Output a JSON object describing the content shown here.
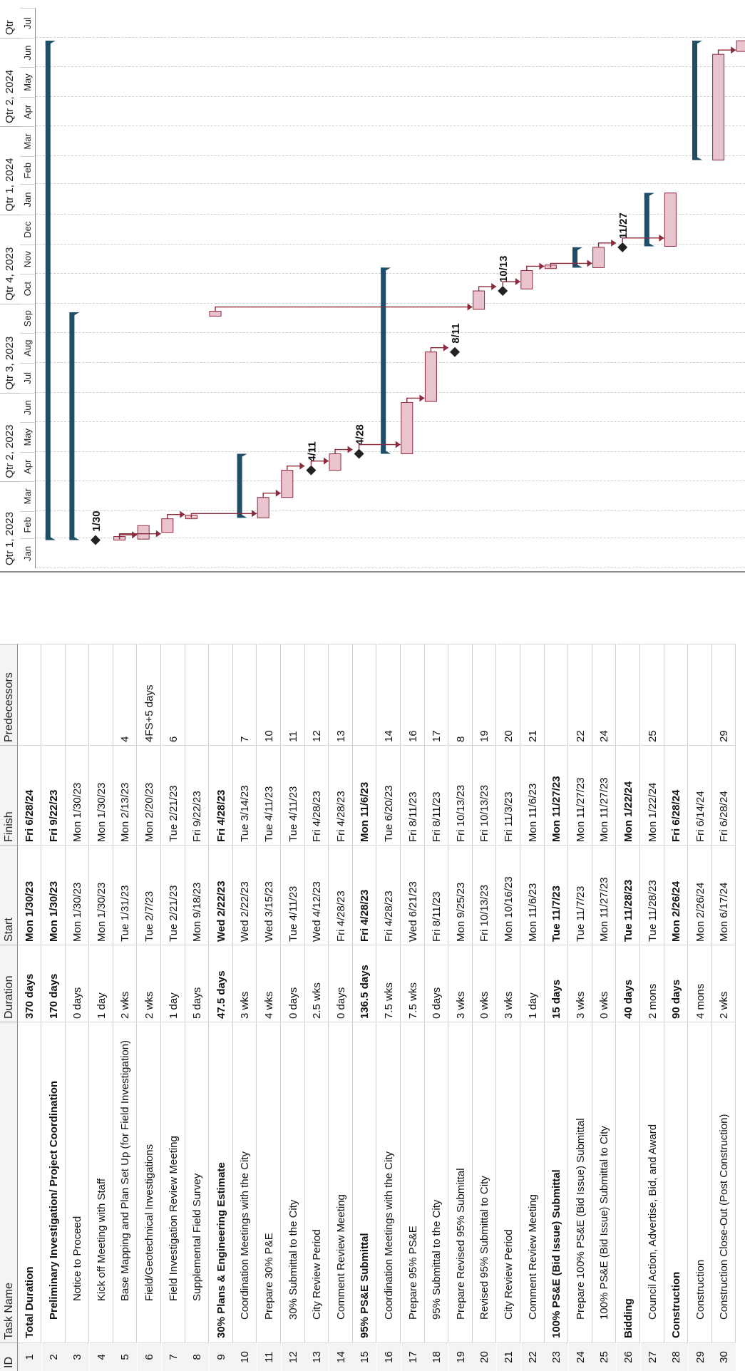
{
  "headers": {
    "id": "ID",
    "name": "Task Name",
    "duration": "Duration",
    "start": "Start",
    "finish": "Finish",
    "pred": "Predecessors"
  },
  "timescale": {
    "quarters": [
      "Qtr 1, 2023",
      "Qtr 2, 2023",
      "Qtr 3, 2023",
      "Qtr 4, 2023",
      "Qtr 1, 2024",
      "Qtr 2, 2024",
      "Qtr"
    ],
    "months": [
      "Jan",
      "Feb",
      "Mar",
      "Apr",
      "May",
      "Jun",
      "Jul",
      "Aug",
      "Sep",
      "Oct",
      "Nov",
      "Dec",
      "Jan",
      "Feb",
      "Mar",
      "Apr",
      "May",
      "Jun",
      "Jul"
    ]
  },
  "tasks": [
    {
      "id": "1",
      "name": "Total Duration",
      "duration": "370 days",
      "start": "Mon 1/30/23",
      "finish": "Fri 6/28/24",
      "pred": "",
      "summary": true,
      "indent": 0,
      "s": 29,
      "f": 544
    },
    {
      "id": "2",
      "name": "Preliminary Investigation/ Project Coordination",
      "duration": "170 days",
      "start": "Mon 1/30/23",
      "finish": "Fri 9/22/23",
      "pred": "",
      "summary": true,
      "indent": 1,
      "s": 29,
      "f": 264
    },
    {
      "id": "3",
      "name": "Notice to Proceed",
      "duration": "0 days",
      "start": "Mon 1/30/23",
      "finish": "Mon 1/30/23",
      "pred": "",
      "indent": 2,
      "milestone": true,
      "s": 29,
      "label": "1/30"
    },
    {
      "id": "4",
      "name": "Kick off Meeting with Staff",
      "duration": "1 day",
      "start": "Mon 1/30/23",
      "finish": "Mon 1/30/23",
      "pred": "",
      "indent": 2,
      "s": 29,
      "f": 30
    },
    {
      "id": "5",
      "name": "Base Mapping and Plan Set Up (for Field Investigation)",
      "duration": "2 wks",
      "start": "Tue 1/31/23",
      "finish": "Mon 2/13/23",
      "pred": "4",
      "indent": 2,
      "s": 30,
      "f": 44
    },
    {
      "id": "6",
      "name": "Field/Geotechnical Investigations",
      "duration": "2 wks",
      "start": "Tue 2/7/23",
      "finish": "Mon 2/20/23",
      "pred": "4FS+5 days",
      "indent": 2,
      "s": 37,
      "f": 51
    },
    {
      "id": "7",
      "name": "Field Investigation Review Meeting",
      "duration": "1 day",
      "start": "Tue 2/21/23",
      "finish": "Tue 2/21/23",
      "pred": "6",
      "indent": 2,
      "s": 51,
      "f": 52
    },
    {
      "id": "8",
      "name": "Supplemental Field Survey",
      "duration": "5 days",
      "start": "Mon 9/18/23",
      "finish": "Fri 9/22/23",
      "pred": "",
      "indent": 2,
      "s": 260,
      "f": 265
    },
    {
      "id": "9",
      "name": "30% Plans & Engineering Estimate",
      "duration": "47.5 days",
      "start": "Wed 2/22/23",
      "finish": "Fri 4/28/23",
      "pred": "",
      "summary": true,
      "indent": 0,
      "s": 52,
      "f": 118
    },
    {
      "id": "10",
      "name": "Coordination Meetings with the City",
      "duration": "3 wks",
      "start": "Wed 2/22/23",
      "finish": "Tue 3/14/23",
      "pred": "7",
      "indent": 1,
      "s": 52,
      "f": 73
    },
    {
      "id": "11",
      "name": "Prepare 30% P&E",
      "duration": "4 wks",
      "start": "Wed 3/15/23",
      "finish": "Tue 4/11/23",
      "pred": "10",
      "indent": 1,
      "s": 73,
      "f": 101
    },
    {
      "id": "12",
      "name": "30% Submittal to the City",
      "duration": "0 days",
      "start": "Tue 4/11/23",
      "finish": "Tue 4/11/23",
      "pred": "11",
      "indent": 1,
      "milestone": true,
      "s": 101,
      "label": "4/11"
    },
    {
      "id": "13",
      "name": "City Review Period",
      "duration": "2.5 wks",
      "start": "Wed 4/12/23",
      "finish": "Fri 4/28/23",
      "pred": "12",
      "indent": 1,
      "s": 101,
      "f": 118
    },
    {
      "id": "14",
      "name": "Comment Review Meeting",
      "duration": "0 days",
      "start": "Fri 4/28/23",
      "finish": "Fri 4/28/23",
      "pred": "13",
      "indent": 1,
      "milestone": true,
      "s": 118,
      "label": "4/28"
    },
    {
      "id": "15",
      "name": "95% PS&E Submittal",
      "duration": "136.5 days",
      "start": "Fri 4/28/23",
      "finish": "Mon 11/6/23",
      "pred": "",
      "summary": true,
      "indent": 0,
      "s": 118,
      "f": 310
    },
    {
      "id": "16",
      "name": "Coordination Meetings with the City",
      "duration": "7.5 wks",
      "start": "Fri 4/28/23",
      "finish": "Tue 6/20/23",
      "pred": "14",
      "indent": 1,
      "s": 118,
      "f": 171
    },
    {
      "id": "17",
      "name": "Prepare 95% PS&E",
      "duration": "7.5 wks",
      "start": "Wed 6/21/23",
      "finish": "Fri 8/11/23",
      "pred": "16",
      "indent": 1,
      "s": 172,
      "f": 223
    },
    {
      "id": "18",
      "name": "95% Submittal to the City",
      "duration": "0 days",
      "start": "Fri 8/11/23",
      "finish": "Fri 8/11/23",
      "pred": "17",
      "indent": 1,
      "milestone": true,
      "s": 223,
      "label": "8/11"
    },
    {
      "id": "19",
      "name": "Prepare Revised 95% Submittal",
      "duration": "3 wks",
      "start": "Mon 9/25/23",
      "finish": "Fri 10/13/23",
      "pred": "8",
      "indent": 1,
      "s": 267,
      "f": 286
    },
    {
      "id": "20",
      "name": "Revised 95% Submittal to City",
      "duration": "0 wks",
      "start": "Fri 10/13/23",
      "finish": "Fri 10/13/23",
      "pred": "19",
      "indent": 1,
      "milestone": true,
      "s": 286,
      "label": "10/13"
    },
    {
      "id": "21",
      "name": "City Review Period",
      "duration": "3 wks",
      "start": "Mon 10/16/23",
      "finish": "Fri 11/3/23",
      "pred": "20",
      "indent": 1,
      "s": 288,
      "f": 307
    },
    {
      "id": "22",
      "name": "Comment Review Meeting",
      "duration": "1 day",
      "start": "Mon 11/6/23",
      "finish": "Mon 11/6/23",
      "pred": "21",
      "indent": 1,
      "s": 309,
      "f": 310
    },
    {
      "id": "23",
      "name": "100% PS&E (Bid Issue) Submittal",
      "duration": "15 days",
      "start": "Tue 11/7/23",
      "finish": "Mon 11/27/23",
      "pred": "",
      "summary": true,
      "indent": 0,
      "s": 310,
      "f": 331
    },
    {
      "id": "24",
      "name": "Prepare 100% PS&E (Bid Issue) Submittal",
      "duration": "3 wks",
      "start": "Tue 11/7/23",
      "finish": "Mon 11/27/23",
      "pred": "22",
      "indent": 1,
      "s": 310,
      "f": 331
    },
    {
      "id": "25",
      "name": "100% PS&E (Bid Issue) Submittal to City",
      "duration": "0 wks",
      "start": "Mon 11/27/23",
      "finish": "Mon 11/27/23",
      "pred": "24",
      "indent": 1,
      "milestone": true,
      "s": 331,
      "label": "11/27"
    },
    {
      "id": "26",
      "name": "Bidding",
      "duration": "40 days",
      "start": "Tue 11/28/23",
      "finish": "Mon 1/22/24",
      "pred": "",
      "summary": true,
      "indent": 0,
      "s": 332,
      "f": 387
    },
    {
      "id": "27",
      "name": "Council Action, Advertise, Bid, and Award",
      "duration": "2 mons",
      "start": "Tue 11/28/23",
      "finish": "Mon 1/22/24",
      "pred": "25",
      "indent": 1,
      "s": 332,
      "f": 387
    },
    {
      "id": "28",
      "name": "Construction",
      "duration": "90 days",
      "start": "Mon 2/26/24",
      "finish": "Fri 6/28/24",
      "pred": "",
      "summary": true,
      "indent": 0,
      "s": 421,
      "f": 544
    },
    {
      "id": "29",
      "name": "Construction",
      "duration": "4 mons",
      "start": "Mon 2/26/24",
      "finish": "Fri 6/14/24",
      "pred": "",
      "indent": 1,
      "s": 421,
      "f": 530
    },
    {
      "id": "30",
      "name": "Construction Close-Out (Post Construction)",
      "duration": "2 wks",
      "start": "Mon 6/17/24",
      "finish": "Fri 6/28/24",
      "pred": "29",
      "indent": 1,
      "s": 533,
      "f": 544
    }
  ],
  "colors": {
    "summary": "#1f4e66",
    "bar": "#e9c4cf",
    "bar_edge": "#8b2a3b",
    "milestone": "#222222",
    "link": "#8b2a3b"
  }
}
